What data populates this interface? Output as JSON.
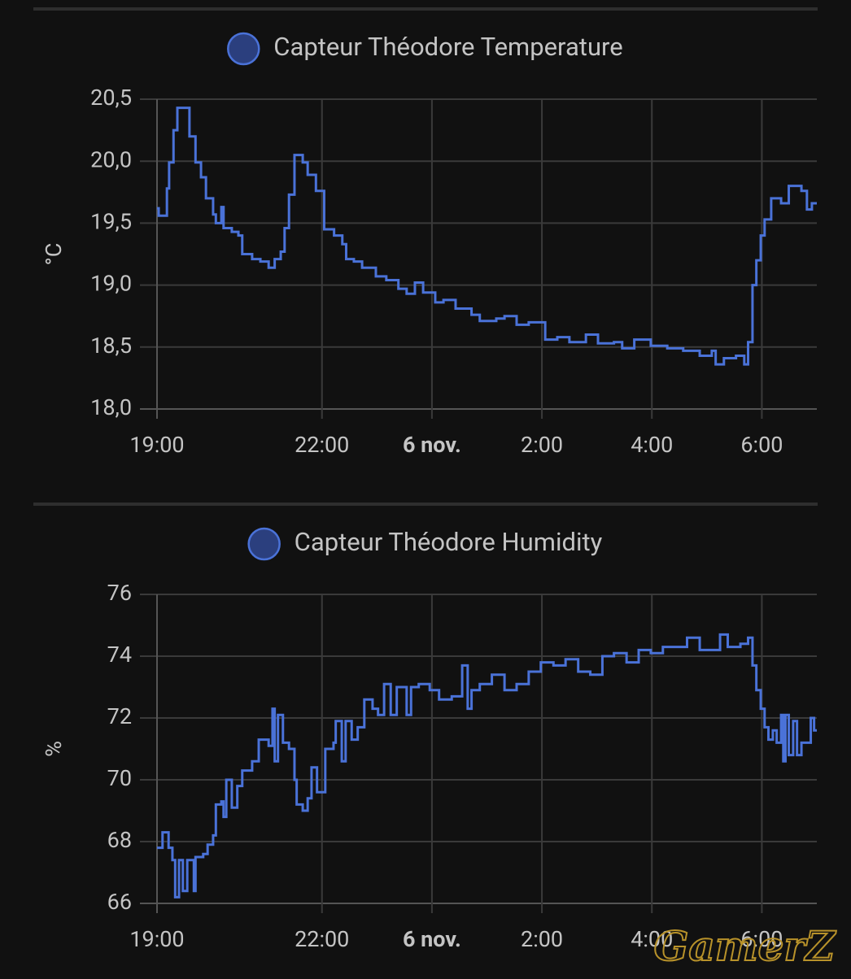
{
  "chart_data": [
    {
      "type": "line",
      "step": true,
      "y_label": "°C",
      "series": [
        {
          "name": "Capteur Théodore Temperature",
          "color": "#4a72d8",
          "values": [
            19.62,
            19.56,
            19.78,
            19.99,
            20.25,
            20.43,
            20.2,
            19.99,
            19.87,
            19.7,
            19.57,
            19.5,
            19.63,
            19.46,
            19.43,
            19.4,
            19.25,
            19.21,
            19.19,
            19.14,
            19.21,
            19.27,
            19.46,
            19.73,
            20.05,
            19.99,
            19.89,
            19.76,
            19.45,
            19.4,
            19.33,
            19.21,
            19.19,
            19.14,
            19.07,
            19.04,
            18.97,
            18.93,
            19.02,
            18.94,
            18.86,
            18.88,
            18.81,
            18.76,
            18.71,
            18.73,
            18.75,
            18.68,
            18.7,
            18.56,
            18.58,
            18.54,
            18.6,
            18.53,
            18.54,
            18.49,
            18.56,
            18.51,
            18.49,
            18.47,
            18.43,
            18.47,
            18.36,
            18.41,
            18.43,
            18.36,
            18.54,
            19.0,
            19.2,
            19.4,
            19.53,
            19.7,
            19.66,
            19.8,
            19.76,
            19.61,
            19.66
          ]
        }
      ],
      "x": [
        19.0,
        19.03,
        19.18,
        19.22,
        19.3,
        19.37,
        19.59,
        19.7,
        19.8,
        19.89,
        20.02,
        20.07,
        20.17,
        20.21,
        20.36,
        20.48,
        20.55,
        20.73,
        20.88,
        21.03,
        21.14,
        21.25,
        21.32,
        21.4,
        21.5,
        21.65,
        21.74,
        21.89,
        22.04,
        22.22,
        22.37,
        22.44,
        22.58,
        22.73,
        22.98,
        23.17,
        23.39,
        23.54,
        23.69,
        23.84,
        24.06,
        24.21,
        24.43,
        24.72,
        24.87,
        25.17,
        25.32,
        25.54,
        25.76,
        26.06,
        26.28,
        26.5,
        26.8,
        27.02,
        27.31,
        27.46,
        27.68,
        27.98,
        28.28,
        28.57,
        28.87,
        29.09,
        29.16,
        29.31,
        29.53,
        29.68,
        29.75,
        29.83,
        29.9,
        29.98,
        30.05,
        30.17,
        30.35,
        30.49,
        30.72,
        30.82,
        30.91
      ],
      "xlim": [
        19,
        31
      ],
      "xticks": [
        {
          "value": 19,
          "label": "19:00"
        },
        {
          "value": 22,
          "label": "22:00"
        },
        {
          "value": 24,
          "label": "6 nov."
        },
        {
          "value": 26,
          "label": "2:00"
        },
        {
          "value": 28,
          "label": "4:00"
        },
        {
          "value": 30,
          "label": "6:00"
        }
      ],
      "ylim": [
        18.0,
        20.5
      ],
      "yticks": [
        {
          "value": 18.0,
          "label": "18,0"
        },
        {
          "value": 18.5,
          "label": "18,5"
        },
        {
          "value": 19.0,
          "label": "19,0"
        },
        {
          "value": 19.5,
          "label": "19,5"
        },
        {
          "value": 20.0,
          "label": "20,0"
        },
        {
          "value": 20.5,
          "label": "20,5"
        }
      ],
      "grid": true
    },
    {
      "type": "line",
      "step": true,
      "y_label": "%",
      "series": [
        {
          "name": "Capteur Théodore Humidity",
          "color": "#4a72d8",
          "values": [
            67.8,
            68.3,
            67.8,
            67.4,
            66.2,
            67.4,
            66.4,
            67.4,
            66.4,
            67.5,
            67.6,
            67.9,
            68.2,
            69.2,
            69.3,
            68.8,
            70.0,
            69.1,
            69.8,
            70.3,
            70.6,
            71.3,
            71.1,
            72.3,
            70.6,
            72.1,
            71.2,
            71.0,
            70.0,
            69.2,
            69.0,
            69.4,
            70.4,
            69.6,
            71.0,
            71.2,
            71.9,
            70.6,
            71.9,
            71.3,
            71.7,
            72.6,
            72.3,
            72.1,
            73.1,
            72.1,
            73.0,
            72.1,
            73.0,
            73.1,
            72.9,
            72.6,
            72.7,
            73.7,
            72.3,
            72.9,
            73.1,
            73.4,
            72.9,
            73.1,
            73.5,
            73.8,
            73.7,
            73.9,
            73.5,
            73.4,
            74.0,
            74.1,
            73.8,
            74.2,
            74.1,
            74.3,
            74.3,
            74.6,
            74.2,
            74.2,
            74.7,
            74.3,
            74.4,
            74.6,
            73.7,
            72.9,
            72.3,
            71.7,
            71.3,
            71.6,
            71.2,
            72.1,
            70.6,
            72.1,
            70.8,
            71.9,
            70.8,
            71.2,
            71.2,
            72.0,
            71.6
          ]
        }
      ],
      "x": [
        19.0,
        19.1,
        19.21,
        19.28,
        19.33,
        19.4,
        19.47,
        19.55,
        19.67,
        19.7,
        19.84,
        19.92,
        20.02,
        20.07,
        20.17,
        20.21,
        20.26,
        20.36,
        20.46,
        20.55,
        20.73,
        20.85,
        21.03,
        21.1,
        21.14,
        21.2,
        21.29,
        21.4,
        21.5,
        21.54,
        21.65,
        21.74,
        21.81,
        21.91,
        22.06,
        22.21,
        22.25,
        22.36,
        22.43,
        22.54,
        22.65,
        22.77,
        22.92,
        23.02,
        23.13,
        23.25,
        23.36,
        23.54,
        23.62,
        23.76,
        23.96,
        24.13,
        24.36,
        24.55,
        24.65,
        24.72,
        24.87,
        25.09,
        25.32,
        25.54,
        25.76,
        25.98,
        26.21,
        26.43,
        26.66,
        26.88,
        27.1,
        27.31,
        27.54,
        27.76,
        27.98,
        28.2,
        28.42,
        28.64,
        28.87,
        29.09,
        29.24,
        29.38,
        29.61,
        29.75,
        29.83,
        29.9,
        29.98,
        30.05,
        30.12,
        30.2,
        30.27,
        30.35,
        30.39,
        30.43,
        30.49,
        30.57,
        30.64,
        30.72,
        30.79,
        30.89,
        30.95
      ],
      "xlim": [
        19,
        31
      ],
      "xticks": [
        {
          "value": 19,
          "label": "19:00"
        },
        {
          "value": 22,
          "label": "22:00"
        },
        {
          "value": 24,
          "label": "6 nov."
        },
        {
          "value": 26,
          "label": "2:00"
        },
        {
          "value": 28,
          "label": "4:00"
        },
        {
          "value": 30,
          "label": "6:00"
        }
      ],
      "ylim": [
        66,
        76
      ],
      "yticks": [
        66,
        68,
        70,
        72,
        74,
        76
      ],
      "grid": true
    }
  ],
  "watermark": "GamerZ"
}
